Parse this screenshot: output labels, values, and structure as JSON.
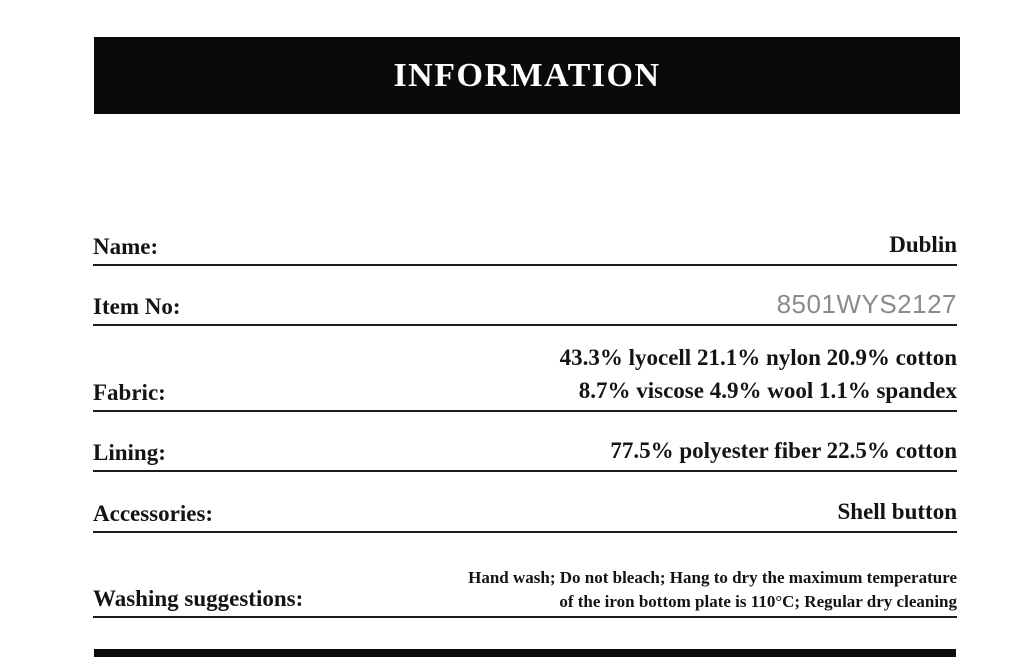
{
  "header": {
    "title": "INFORMATION",
    "bg_color": "#0a0a0a",
    "text_color": "#ffffff"
  },
  "rows": [
    {
      "label": "Name:",
      "value_lines": [
        "Dublin"
      ]
    },
    {
      "label": "Item No:",
      "value_lines": [
        "8501WYS2127"
      ],
      "value_color": "#8b8b8b"
    },
    {
      "label": "Fabric:",
      "value_lines": [
        "43.3% lyocell 21.1% nylon 20.9% cotton",
        "8.7% viscose 4.9% wool 1.1% spandex"
      ]
    },
    {
      "label": "Lining:",
      "value_lines": [
        "77.5% polyester fiber 22.5% cotton"
      ]
    },
    {
      "label": "Accessories:",
      "value_lines": [
        "Shell button"
      ]
    },
    {
      "label": "Washing suggestions:",
      "value_lines": [
        "Hand wash; Do not bleach; Hang to dry the maximum temperature",
        "of the iron bottom plate is 110°C; Regular dry cleaning"
      ]
    }
  ]
}
